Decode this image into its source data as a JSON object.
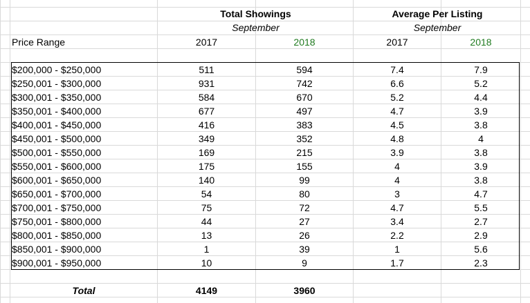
{
  "header": {
    "group1_title": "Total Showings",
    "group1_subtitle": "September",
    "group2_title": "Average Per Listing",
    "group2_subtitle": "September",
    "price_range_label": "Price Range",
    "col_2017_a": "2017",
    "col_2018_a": "2018",
    "col_2017_b": "2017",
    "col_2018_b": "2018"
  },
  "colors": {
    "year_2018": "#1f7a1f",
    "grid": "#d9d9d9"
  },
  "rows": [
    {
      "range": "$200,000 - $250,000",
      "s2017": "511",
      "s2018": "594",
      "a2017": "7.4",
      "a2018": "7.9"
    },
    {
      "range": "$250,001 - $300,000",
      "s2017": "931",
      "s2018": "742",
      "a2017": "6.6",
      "a2018": "5.2"
    },
    {
      "range": "$300,001 - $350,000",
      "s2017": "584",
      "s2018": "670",
      "a2017": "5.2",
      "a2018": "4.4"
    },
    {
      "range": "$350,001 - $400,000",
      "s2017": "677",
      "s2018": "497",
      "a2017": "4.7",
      "a2018": "3.9"
    },
    {
      "range": "$400,001 - $450,000",
      "s2017": "416",
      "s2018": "383",
      "a2017": "4.5",
      "a2018": "3.8"
    },
    {
      "range": "$450,001 - $500,000",
      "s2017": "349",
      "s2018": "352",
      "a2017": "4.8",
      "a2018": "4"
    },
    {
      "range": "$500,001 - $550,000",
      "s2017": "169",
      "s2018": "215",
      "a2017": "3.9",
      "a2018": "3.8"
    },
    {
      "range": "$550,001 - $600,000",
      "s2017": "175",
      "s2018": "155",
      "a2017": "4",
      "a2018": "3.9"
    },
    {
      "range": "$600,001 - $650,000",
      "s2017": "140",
      "s2018": "99",
      "a2017": "4",
      "a2018": "3.8"
    },
    {
      "range": "$650,001 - $700,000",
      "s2017": "54",
      "s2018": "80",
      "a2017": "3",
      "a2018": "4.7"
    },
    {
      "range": "$700,001 - $750,000",
      "s2017": "75",
      "s2018": "72",
      "a2017": "4.7",
      "a2018": "5.5"
    },
    {
      "range": "$750,001 - $800,000",
      "s2017": "44",
      "s2018": "27",
      "a2017": "3.4",
      "a2018": "2.7"
    },
    {
      "range": "$800,001 - $850,000",
      "s2017": "13",
      "s2018": "26",
      "a2017": "2.2",
      "a2018": "2.9"
    },
    {
      "range": "$850,001 - $900,000",
      "s2017": "1",
      "s2018": "39",
      "a2017": "1",
      "a2018": "5.6"
    },
    {
      "range": "$900,001 - $950,000",
      "s2017": "10",
      "s2018": "9",
      "a2017": "1.7",
      "a2018": "2.3"
    }
  ],
  "totals": {
    "label": "Total",
    "s2017": "4149",
    "s2018": "3960"
  }
}
